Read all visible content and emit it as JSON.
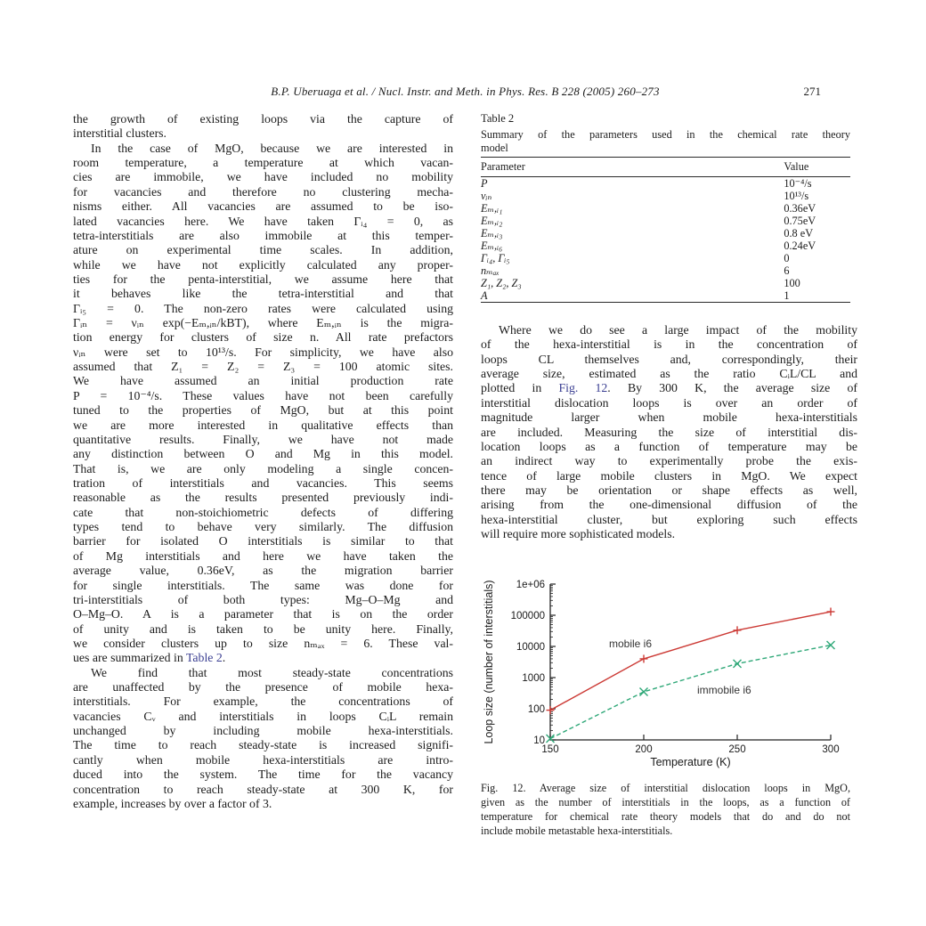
{
  "page": {
    "header": "B.P. Uberuaga et al. / Nucl. Instr. and Meth. in Phys. Res. B 228 (2005) 260–273",
    "number": "271"
  },
  "left_column": {
    "para1": [
      "the growth of existing loops via the capture of",
      "interstitial clusters."
    ],
    "para2": [
      "In the case of MgO, because we are interested in",
      "room temperature, a temperature at which vacan-",
      "cies are immobile, we have included no mobility",
      "for vacancies and therefore no clustering mecha-",
      "nisms either. All vacancies are assumed to be iso-",
      "lated vacancies here. We have taken Γᵢ₄ = 0, as",
      "tetra-interstitials are also immobile at this temper-",
      "ature on experimental time scales. In addition,",
      "while we have not explicitly calculated any proper-",
      "ties for the penta-interstitial, we assume here that",
      "it behaves like the tetra-interstitial and that",
      "Γᵢ₅ = 0. The non-zero rates were calculated using",
      "Γᵢₙ = νᵢₙ exp(−Eₘ,ᵢₙ/kBT), where Eₘ,ᵢₙ is the migra-",
      "tion energy for clusters of size n. All rate prefactors",
      "νᵢₙ were set to 10¹³/s. For simplicity, we have also",
      "assumed that Z₁ = Z₂ = Z₃ = 100 atomic sites.",
      "We have assumed an initial production rate",
      "P = 10⁻⁴/s. These values have not been carefully",
      "tuned to the properties of MgO, but at this point",
      "we are more interested in qualitative effects than",
      "quantitative results. Finally, we have not made",
      "any distinction between O and Mg in this model.",
      "That is, we are only modeling a single concen-",
      "tration of interstitials and vacancies. This seems",
      "reasonable as the results presented previously indi-",
      "cate that non-stoichiometric defects of differing",
      "types tend to behave very similarly. The diffusion",
      "barrier for isolated O interstitials is similar to that",
      "of Mg interstitials and here we have taken the",
      "average value, 0.36eV, as the migration barrier",
      "for single interstitials. The same was done for",
      "tri-interstitials of both types: Mg–O–Mg and",
      "O–Mg–O. A is a parameter that is on the order",
      "of unity and is taken to be unity here. Finally,",
      "we consider clusters up to size nₘₐₓ = 6. These val-",
      {
        "pre": "ues are summarized in ",
        "link": "Table 2",
        "post": "."
      }
    ],
    "para3": [
      "We find that most steady-state concentrations",
      "are unaffected by the presence of mobile hexa-",
      "interstitials. For example, the concentrations of",
      "vacancies Cᵥ and interstitials in loops CᵢL remain",
      "unchanged by including mobile hexa-interstitials.",
      "The time to reach steady-state is increased signifi-",
      "cantly when mobile hexa-interstitials are intro-",
      "duced into the system. The time for the vacancy",
      "concentration to reach steady-state at 300 K, for",
      "example, increases by over a factor of 3."
    ]
  },
  "table2": {
    "label": "Table 2",
    "caption_lines": [
      "Summary of the parameters used in the chemical rate theory",
      "model"
    ],
    "col_headers": [
      "Parameter",
      "Value"
    ],
    "rows": [
      [
        "P",
        "10⁻⁴/s"
      ],
      [
        "νᵢₙ",
        "10¹³/s"
      ],
      [
        "Eₘ,ᵢ₁",
        "0.36eV"
      ],
      [
        "Eₘ,ᵢ₂",
        "0.75eV"
      ],
      [
        "Eₘ,ᵢ₃",
        "0.8 eV"
      ],
      [
        "Eₘ,ᵢ₆",
        "0.24eV"
      ],
      [
        "Γᵢ₄, Γᵢ₅",
        "0"
      ],
      [
        "nₘₐₓ",
        "6"
      ],
      [
        "Z₁, Z₂, Z₃",
        "100"
      ],
      [
        "A",
        "1"
      ]
    ]
  },
  "right_column": {
    "para1": [
      "Where we do see a large impact of the mobility",
      "of the hexa-interstitial is in the concentration of",
      "loops CL themselves and, correspondingly, their",
      "average size, estimated as the ratio CᵢL/CL and",
      {
        "pre": "plotted in ",
        "link": "Fig. 12",
        "post": ". By 300 K, the average size of"
      },
      "interstitial dislocation loops is over an order of",
      "magnitude larger when mobile hexa-interstitials",
      "are included. Measuring the size of interstitial dis-",
      "location loops as a function of temperature may be",
      "an indirect way to experimentally probe the exis-",
      "tence of large mobile clusters in MgO. We expect",
      "there may be orientation or shape effects as well,",
      "arising from the one-dimensional diffusion of the",
      "hexa-interstitial cluster, but exploring such effects",
      "will require more sophisticated models."
    ]
  },
  "figure": {
    "caption_lines": [
      "Fig. 12. Average size of interstitial dislocation loops in MgO,",
      "given as the number of interstitials in the loops, as a function of",
      "temperature for chemical rate theory models that do and do not",
      "include mobile metastable hexa-interstitials."
    ]
  },
  "chart_data": {
    "type": "line",
    "title": "",
    "xlabel": "Temperature (K)",
    "ylabel": "Loop size (number of interstitials)",
    "x": [
      150,
      200,
      250,
      300
    ],
    "xlim": [
      150,
      300
    ],
    "ylim": [
      10,
      1000000
    ],
    "yscale": "log",
    "grid": false,
    "xtick_labels": [
      "150",
      "200",
      "250",
      "300"
    ],
    "ytick_labels": [
      "10",
      "100",
      "1000",
      "10000",
      "100000",
      "1e+06"
    ],
    "legend_position": "inline-labels",
    "series": [
      {
        "name": "mobile i6",
        "values": [
          90,
          4000,
          33000,
          130000
        ],
        "color": "#cc3a35",
        "style": "solid",
        "marker": "plus",
        "label_pos": [
          144,
          84
        ]
      },
      {
        "name": "immobile i6",
        "values": [
          11,
          350,
          2800,
          11000
        ],
        "color": "#2fa878",
        "style": "dashed",
        "marker": "cross",
        "label_pos": [
          243,
          136
        ]
      }
    ]
  },
  "colors": {
    "link": "#3b3f92",
    "text": "#1c1c1c",
    "rule": "#2a2a2a"
  }
}
